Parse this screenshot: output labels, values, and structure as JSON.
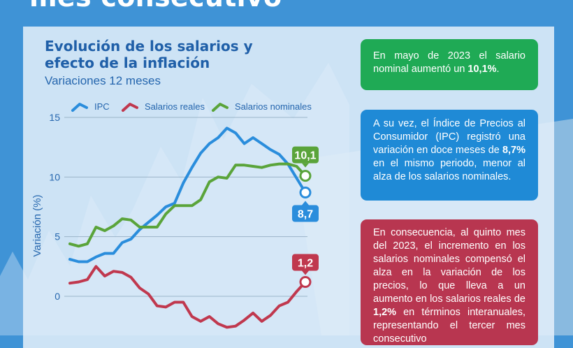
{
  "headline": "mes consecutivo",
  "colors": {
    "background": "#3f93d6",
    "panel": "#e1eef9",
    "ipc": "#2a8ddc",
    "salarios_reales": "#c0384e",
    "salarios_nominales": "#5aa43a",
    "title": "#1f5fa8"
  },
  "chart_data": {
    "type": "line",
    "title": "Evolución de los salarios y efecto de la inflación",
    "subtitle": "Variaciones 12 meses",
    "ylabel": "Variación (%)",
    "xlabel": "",
    "ylim": [
      -3,
      15
    ],
    "yticks": [
      0,
      5,
      10,
      15
    ],
    "grid": true,
    "legend_position": "top",
    "x": [
      1,
      2,
      3,
      4,
      5,
      6,
      7,
      8,
      9,
      10,
      11,
      12,
      13,
      14,
      15,
      16,
      17,
      18,
      19,
      20,
      21,
      22,
      23,
      24,
      25,
      26,
      27,
      28
    ],
    "series": [
      {
        "name": "IPC",
        "color": "#2a8ddc",
        "values": [
          3.1,
          2.9,
          2.9,
          3.3,
          3.6,
          3.6,
          4.5,
          4.8,
          5.6,
          6.2,
          6.8,
          7.5,
          7.8,
          9.5,
          10.8,
          12.0,
          12.8,
          13.3,
          14.1,
          13.7,
          12.8,
          13.3,
          12.8,
          12.3,
          11.9,
          11.1,
          9.9,
          8.7
        ]
      },
      {
        "name": "Salarios reales",
        "color": "#c0384e",
        "values": [
          1.1,
          1.2,
          1.4,
          2.5,
          1.7,
          2.1,
          2.0,
          1.6,
          0.7,
          0.2,
          -0.8,
          -0.9,
          -0.5,
          -0.5,
          -1.7,
          -2.1,
          -1.7,
          -2.3,
          -2.6,
          -2.5,
          -2.0,
          -1.4,
          -2.1,
          -1.6,
          -0.8,
          -0.5,
          0.4,
          1.2
        ]
      },
      {
        "name": "Salarios nominales",
        "color": "#5aa43a",
        "values": [
          4.4,
          4.2,
          4.4,
          5.8,
          5.5,
          5.9,
          6.5,
          6.4,
          5.8,
          5.8,
          5.8,
          6.9,
          7.6,
          7.6,
          7.6,
          8.1,
          9.6,
          10.0,
          9.9,
          11.0,
          11.0,
          10.9,
          10.8,
          11.0,
          11.1,
          11.1,
          10.9,
          10.1
        ]
      }
    ],
    "end_labels": [
      "8,7",
      "1,2",
      "10,1"
    ]
  },
  "cards": {
    "green": {
      "parts": [
        {
          "t": "En mayo de 2023 el salario nominal aumentó un ",
          "b": false
        },
        {
          "t": "10,1%",
          "b": true
        },
        {
          "t": ".",
          "b": false
        }
      ]
    },
    "blue": {
      "parts": [
        {
          "t": "A su vez, el Índice de Precios al Consumidor (IPC) registró una variación en doce meses de ",
          "b": false
        },
        {
          "t": "8,7%",
          "b": true
        },
        {
          "t": " en el mismo periodo, menor al alza de los salarios nominales.",
          "b": false
        }
      ]
    },
    "red": {
      "parts": [
        {
          "t": "En consecuencia, al quinto mes del 2023, el incremento en los salarios nominales compensó el alza en la variación de los precios, lo que lleva a un aumento en los salarios reales de ",
          "b": false
        },
        {
          "t": "1,2%",
          "b": true
        },
        {
          "t": " en términos interanuales, representando el tercer mes consecutivo",
          "b": false
        }
      ]
    }
  }
}
